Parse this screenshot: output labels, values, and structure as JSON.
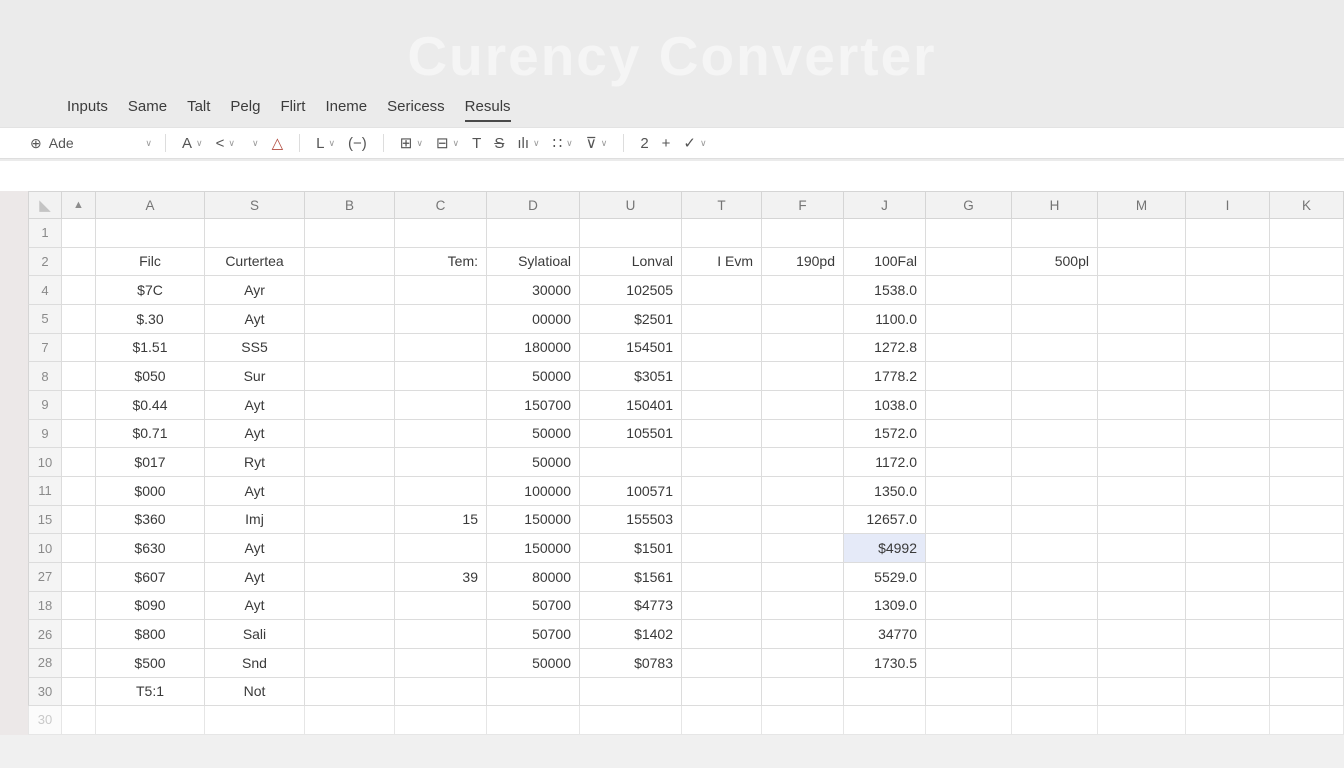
{
  "title": "Curency Converter",
  "menu": {
    "tabs": [
      {
        "label": "Inputs",
        "active": false
      },
      {
        "label": "Same",
        "active": false
      },
      {
        "label": "Talt",
        "active": false
      },
      {
        "label": "Pelg",
        "active": false
      },
      {
        "label": "Flirt",
        "active": false
      },
      {
        "label": "Ineme",
        "active": false
      },
      {
        "label": "Sericess",
        "active": false
      },
      {
        "label": "Resuls",
        "active": true
      }
    ]
  },
  "toolbar": {
    "items": [
      {
        "type": "select",
        "icon": "globe-icon",
        "glyph": "⊕",
        "label": "Ade",
        "chevron": true
      },
      {
        "type": "divider"
      },
      {
        "type": "button",
        "icon": "font-style-icon",
        "glyph": "A",
        "chevron": true
      },
      {
        "type": "button",
        "icon": "angle-bracket-icon",
        "glyph": "<",
        "chevron": true
      },
      {
        "type": "button",
        "icon": "more-options-icon",
        "glyph": "",
        "chevron": true
      },
      {
        "type": "button",
        "icon": "font-color-icon",
        "glyph": "△",
        "color": "#b0493c"
      },
      {
        "type": "divider"
      },
      {
        "type": "button",
        "icon": "border-icon",
        "glyph": "L",
        "chevron": true
      },
      {
        "type": "button",
        "icon": "parentheses-icon",
        "glyph": "(−)"
      },
      {
        "type": "divider"
      },
      {
        "type": "button",
        "icon": "table-icon",
        "glyph": "⊞",
        "chevron": true
      },
      {
        "type": "button",
        "icon": "merge-cells-icon",
        "glyph": "⊟",
        "chevron": true
      },
      {
        "type": "button",
        "icon": "text-icon",
        "glyph": "T"
      },
      {
        "type": "button",
        "icon": "strikethrough-icon",
        "glyph": "S",
        "strike": true
      },
      {
        "type": "button",
        "icon": "bar-chart-icon",
        "glyph": "ılı",
        "chevron": true
      },
      {
        "type": "button",
        "icon": "grid-layout-icon",
        "glyph": "∷",
        "chevron": true
      },
      {
        "type": "button",
        "icon": "filter-icon",
        "glyph": "⊽",
        "chevron": true
      },
      {
        "type": "divider"
      },
      {
        "type": "button",
        "icon": "pen-icon",
        "glyph": "2"
      },
      {
        "type": "button",
        "icon": "add-icon",
        "glyph": "+"
      },
      {
        "type": "button",
        "icon": "brush-icon",
        "glyph": "✓",
        "chevron": true
      }
    ]
  },
  "grid": {
    "columns": [
      {
        "label": "",
        "width": 34,
        "icon": "select-all-icon",
        "glyph": "◣"
      },
      {
        "label": "",
        "width": 34,
        "icon": "marker-icon",
        "glyph": "▲"
      },
      {
        "label": "A",
        "width": 109,
        "align": "center"
      },
      {
        "label": "S",
        "width": 100,
        "align": "center"
      },
      {
        "label": "B",
        "width": 90,
        "align": "center"
      },
      {
        "label": "C",
        "width": 92,
        "align": "right"
      },
      {
        "label": "D",
        "width": 93,
        "align": "right"
      },
      {
        "label": "U",
        "width": 102,
        "align": "right"
      },
      {
        "label": "T",
        "width": 80,
        "align": "right"
      },
      {
        "label": "F",
        "width": 82,
        "align": "right"
      },
      {
        "label": "J",
        "width": 82,
        "align": "right"
      },
      {
        "label": "G",
        "width": 86,
        "align": "right"
      },
      {
        "label": "H",
        "width": 86,
        "align": "right"
      },
      {
        "label": "M",
        "width": 88,
        "align": "right"
      },
      {
        "label": "I",
        "width": 84,
        "align": "right"
      },
      {
        "label": "K",
        "width": 74,
        "align": "right"
      }
    ],
    "rows": [
      {
        "n": "1",
        "c": [
          "",
          "",
          "",
          "",
          "",
          "",
          "",
          "",
          "",
          "",
          "",
          "",
          "",
          ""
        ]
      },
      {
        "n": "2",
        "c": [
          "Filc",
          "Curtertea",
          "",
          "Tem:",
          "Sylatioal",
          "Lonval",
          "I Evm",
          "190pd",
          "100Fal",
          "",
          "500pl",
          "",
          "",
          ""
        ]
      },
      {
        "n": "4",
        "c": [
          "$7C",
          "Ayr",
          "",
          "",
          "30000",
          "102505",
          "",
          "",
          "1538.0",
          "",
          "",
          "",
          "",
          ""
        ]
      },
      {
        "n": "5",
        "c": [
          "$.30",
          "Ayt",
          "",
          "",
          "00000",
          "$2501",
          "",
          "",
          "1100.0",
          "",
          "",
          "",
          "",
          ""
        ]
      },
      {
        "n": "7",
        "c": [
          "$1.51",
          "SS5",
          "",
          "",
          "180000",
          "154501",
          "",
          "",
          "1272.8",
          "",
          "",
          "",
          "",
          ""
        ]
      },
      {
        "n": "8",
        "c": [
          "$050",
          "Sur",
          "",
          "",
          "50000",
          "$3051",
          "",
          "",
          "1778.2",
          "",
          "",
          "",
          "",
          ""
        ]
      },
      {
        "n": "9",
        "c": [
          "$0.44",
          "Ayt",
          "",
          "",
          "150700",
          "150401",
          "",
          "",
          "1038.0",
          "",
          "",
          "",
          "",
          ""
        ]
      },
      {
        "n": "9",
        "c": [
          "$0.71",
          "Ayt",
          "",
          "",
          "50000",
          "105501",
          "",
          "",
          "1572.0",
          "",
          "",
          "",
          "",
          ""
        ]
      },
      {
        "n": "10",
        "c": [
          "$017",
          "Ryt",
          "",
          "",
          "50000",
          "",
          "",
          "",
          "1172.0",
          "",
          "",
          "",
          "",
          ""
        ]
      },
      {
        "n": "11",
        "c": [
          "$000",
          "Ayt",
          "",
          "",
          "100000",
          "100571",
          "",
          "",
          "1350.0",
          "",
          "",
          "",
          "",
          ""
        ]
      },
      {
        "n": "15",
        "c": [
          "$360",
          "Imj",
          "",
          "15",
          "150000",
          "155503",
          "",
          "",
          "12657.0",
          "",
          "",
          "",
          "",
          ""
        ]
      },
      {
        "n": "10",
        "c": [
          "$630",
          "Ayt",
          "",
          "",
          "150000",
          "$1501",
          "",
          "",
          "$4992",
          "",
          "",
          "",
          "",
          ""
        ],
        "sel": 8
      },
      {
        "n": "27",
        "c": [
          "$607",
          "Ayt",
          "",
          "39",
          "80000",
          "$1561",
          "",
          "",
          "5529.0",
          "",
          "",
          "",
          "",
          ""
        ]
      },
      {
        "n": "18",
        "c": [
          "$090",
          "Ayt",
          "",
          "",
          "50700",
          "$4773",
          "",
          "",
          "1309.0",
          "",
          "",
          "",
          "",
          ""
        ]
      },
      {
        "n": "26",
        "c": [
          "$800",
          "Sali",
          "",
          "",
          "50700",
          "$1402",
          "",
          "",
          "34770",
          "",
          "",
          "",
          "",
          ""
        ]
      },
      {
        "n": "28",
        "c": [
          "$500",
          "Snd",
          "",
          "",
          "50000",
          "$0783",
          "",
          "",
          "1730.5",
          "",
          "",
          "",
          "",
          ""
        ]
      },
      {
        "n": "30",
        "c": [
          "T5:1",
          "Not",
          "",
          "",
          "",
          "",
          "",
          "",
          "",
          "",
          "",
          "",
          "",
          ""
        ]
      },
      {
        "n": "30",
        "c": [
          "",
          "",
          "",
          "",
          "",
          "",
          "",
          "",
          "",
          "",
          "",
          "",
          "",
          ""
        ],
        "faded": true
      }
    ],
    "selected_cell": {
      "row_label": "10",
      "column": "J",
      "value": "$4992"
    }
  },
  "colors": {
    "page_bg": "#ebebeb",
    "title_color": "#f5f5f5",
    "selected_cell_bg": "#e5eaf8",
    "accent_red": "#b0493c",
    "grid_line": "#dcdcdc",
    "header_bg": "#f2f2f2"
  }
}
